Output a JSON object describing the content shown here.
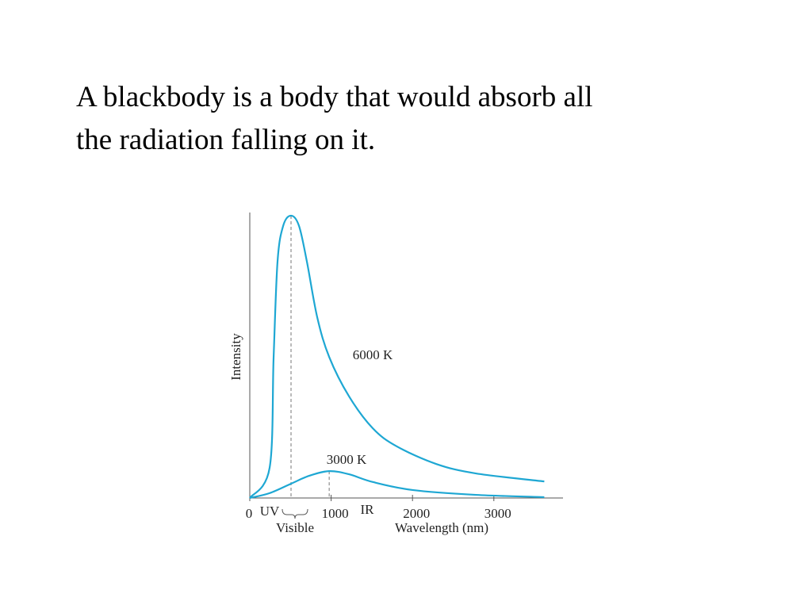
{
  "slide": {
    "text_lines": [
      "A blackbody is a body that would absorb all",
      "the radiation falling on it."
    ]
  },
  "chart_data": {
    "type": "line",
    "x_label": "Wavelength (nm)",
    "y_label": "Intensity",
    "xlim": [
      0,
      3850
    ],
    "ylim": [
      0,
      100
    ],
    "xticks": [
      0,
      1000,
      2000,
      3000
    ],
    "series": [
      {
        "name": "6000 K",
        "color": "#1ea7d3",
        "x": [
          0,
          244,
          293,
          341,
          410,
          507,
          605,
          702,
          829,
          976,
          1220,
          1512,
          1805,
          2293,
          2780,
          3620
        ],
        "values": [
          0,
          10.6,
          49.4,
          82.8,
          95.3,
          98.9,
          95.3,
          82.8,
          63.3,
          49.4,
          35.6,
          24.4,
          18.1,
          11.9,
          8.6,
          5.8
        ]
      },
      {
        "name": "3000 K",
        "color": "#1ea7d3",
        "x": [
          0,
          244,
          507,
          732,
          976,
          1220,
          1512,
          2000,
          2780,
          3620
        ],
        "values": [
          0,
          1.7,
          5,
          7.8,
          9.4,
          8.3,
          5.6,
          2.8,
          1.1,
          0.3
        ]
      }
    ],
    "annotations": [
      "UV",
      "Visible",
      "IR"
    ]
  }
}
